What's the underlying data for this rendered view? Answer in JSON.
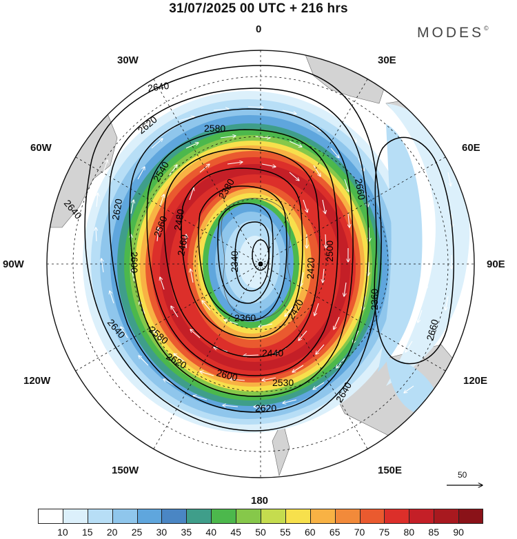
{
  "header": {
    "title": "31/07/2025  00 UTC  + 216 hrs",
    "brand": "MODES",
    "brand_mark": "©"
  },
  "map": {
    "projection": "south-polar-stereographic",
    "longitude_labels": [
      {
        "id": "0",
        "text": "0"
      },
      {
        "id": "30E",
        "text": "30E"
      },
      {
        "id": "60E",
        "text": "60E"
      },
      {
        "id": "90E",
        "text": "90E"
      },
      {
        "id": "120E",
        "text": "120E"
      },
      {
        "id": "150E",
        "text": "150E"
      },
      {
        "id": "180",
        "text": "180"
      },
      {
        "id": "150W",
        "text": "150W"
      },
      {
        "id": "120W",
        "text": "120W"
      },
      {
        "id": "90W",
        "text": "90W"
      },
      {
        "id": "60W",
        "text": "60W"
      },
      {
        "id": "30W",
        "text": "30W"
      }
    ],
    "contour_labels": [
      "2640",
      "2620",
      "2580",
      "2540",
      "2480",
      "2460",
      "2420",
      "2380",
      "2360",
      "2340",
      "2640",
      "2620",
      "2660",
      "2660",
      "2360",
      "2620",
      "2640",
      "2580",
      "2440",
      "2420",
      "2560",
      "2600",
      "2500",
      "2620",
      "2640",
      "2600",
      "2530"
    ],
    "reference_vector": {
      "label": "50"
    }
  },
  "colorbar": {
    "ticks": [
      "10",
      "15",
      "20",
      "25",
      "30",
      "35",
      "40",
      "45",
      "50",
      "55",
      "60",
      "65",
      "70",
      "75",
      "80",
      "85",
      "90"
    ],
    "colors": [
      "#ffffff",
      "#dcf0fb",
      "#b7def6",
      "#8fc6ec",
      "#5fa6dd",
      "#4a86c4",
      "#3f9e8a",
      "#4cb84c",
      "#86c84a",
      "#c5dc4e",
      "#f7e04c",
      "#f8b244",
      "#f28a3a",
      "#ea5a2f",
      "#dc2f2a",
      "#c41f27",
      "#a8191f",
      "#8a1218"
    ],
    "land_color": "#d3d3d3",
    "contour_color": "#000000",
    "wind_vector_color": "#ffffff"
  }
}
